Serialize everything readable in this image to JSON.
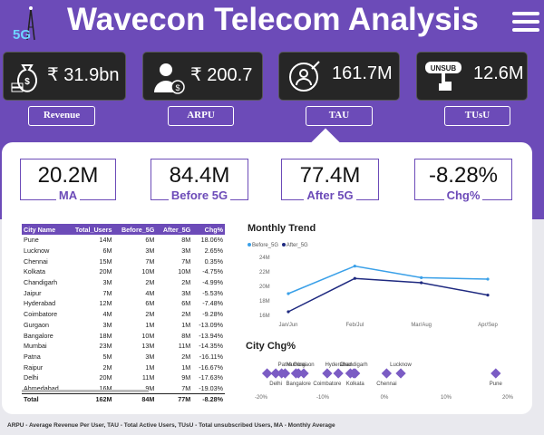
{
  "header": {
    "logo_text": "5G",
    "title": "Wavecon Telecom Analysis",
    "menu_icon": "hamburger-menu-icon"
  },
  "kpis": [
    {
      "icon": "money-icon",
      "value": "₹ 31.9bn",
      "tab": "Revenue"
    },
    {
      "icon": "user-rupee-icon",
      "value": "₹ 200.7",
      "tab": "ARPU"
    },
    {
      "icon": "target-user-icon",
      "value": "161.7M",
      "tab": "TAU"
    },
    {
      "icon": "unsubscribe-hand-icon",
      "value": "12.6M",
      "tab": "TUsU",
      "icon_text": "UNSUB"
    }
  ],
  "selected_tab": "TAU",
  "cards": [
    {
      "value": "20.2M",
      "label": "MA"
    },
    {
      "value": "84.4M",
      "label": "Before 5G"
    },
    {
      "value": "77.4M",
      "label": "After 5G"
    },
    {
      "value": "-8.28%",
      "label": "Chg%"
    }
  ],
  "table": {
    "columns": [
      "City Name",
      "Total_Users",
      "Before_5G",
      "After_5G",
      "Chg%"
    ],
    "rows": [
      [
        "Pune",
        "14M",
        "6M",
        "8M",
        "18.06%"
      ],
      [
        "Lucknow",
        "6M",
        "3M",
        "3M",
        "2.65%"
      ],
      [
        "Chennai",
        "15M",
        "7M",
        "7M",
        "0.35%"
      ],
      [
        "Kolkata",
        "20M",
        "10M",
        "10M",
        "-4.75%"
      ],
      [
        "Chandigarh",
        "3M",
        "2M",
        "2M",
        "-4.99%"
      ],
      [
        "Jaipur",
        "7M",
        "4M",
        "3M",
        "-5.53%"
      ],
      [
        "Hyderabad",
        "12M",
        "6M",
        "6M",
        "-7.48%"
      ],
      [
        "Coimbatore",
        "4M",
        "2M",
        "2M",
        "-9.28%"
      ],
      [
        "Gurgaon",
        "3M",
        "1M",
        "1M",
        "-13.09%"
      ],
      [
        "Bangalore",
        "18M",
        "10M",
        "8M",
        "-13.94%"
      ],
      [
        "Mumbai",
        "23M",
        "13M",
        "11M",
        "-14.35%"
      ],
      [
        "Patna",
        "5M",
        "3M",
        "2M",
        "-16.11%"
      ],
      [
        "Raipur",
        "2M",
        "1M",
        "1M",
        "-16.67%"
      ],
      [
        "Delhi",
        "20M",
        "11M",
        "9M",
        "-17.63%"
      ],
      [
        "Ahmedabad",
        "16M",
        "9M",
        "7M",
        "-19.03%"
      ]
    ],
    "total": [
      "Total",
      "162M",
      "84M",
      "77M",
      "-8.28%"
    ]
  },
  "monthly_trend": {
    "title": "Monthly Trend",
    "legend": [
      "Before_5G",
      "After_5G"
    ]
  },
  "city_chg": {
    "title": "City Chg%"
  },
  "footer": "ARPU - Average Revenue Per User, TAU - Total Active Users, TUsU - Total unsubscribed Users, MA - Monthly Average",
  "colors": {
    "accent": "#6c4bb8",
    "before": "#3aa0e8",
    "after": "#1f2a80",
    "dot": "#7b5cc4"
  },
  "chart_data": [
    {
      "type": "line",
      "title": "Monthly Trend",
      "categories": [
        "Jan/Jun",
        "Feb/Jul",
        "Mar/Aug",
        "Apr/Sep"
      ],
      "series": [
        {
          "name": "Before_5G",
          "values": [
            19.0,
            22.8,
            21.2,
            21.0
          ]
        },
        {
          "name": "After_5G",
          "values": [
            16.5,
            21.1,
            20.5,
            18.8
          ]
        }
      ],
      "yticks": [
        "24M",
        "22M",
        "20M",
        "18M",
        "16M"
      ],
      "ylim": [
        16,
        24
      ]
    },
    {
      "type": "scatter",
      "title": "City Chg%",
      "xticks": [
        "-20%",
        "-10%",
        "0%",
        "10%",
        "20%"
      ],
      "xlim": [
        -20,
        20
      ],
      "points": [
        {
          "label": "Pune",
          "x": 18.06
        },
        {
          "label": "Lucknow",
          "x": 2.65
        },
        {
          "label": "Chennai",
          "x": 0.35
        },
        {
          "label": "Kolkata",
          "x": -4.75
        },
        {
          "label": "Chandigarh",
          "x": -4.99
        },
        {
          "label": "Jaipur",
          "x": -5.53
        },
        {
          "label": "Hyderabad",
          "x": -7.48
        },
        {
          "label": "Coimbatore",
          "x": -9.28
        },
        {
          "label": "Gurgaon",
          "x": -13.09
        },
        {
          "label": "Bangalore",
          "x": -13.94
        },
        {
          "label": "Mumbai",
          "x": -14.35
        },
        {
          "label": "Patna",
          "x": -16.11
        },
        {
          "label": "Raipur",
          "x": -16.67
        },
        {
          "label": "Delhi",
          "x": -17.63
        },
        {
          "label": "Ahmedabad",
          "x": -19.03
        }
      ],
      "shown_labels_top": [
        "Patna",
        "Gurgaon",
        "Mumbai",
        "Hyderabad",
        "Chandigarh",
        "Lucknow"
      ],
      "shown_labels_bottom": [
        "Delhi",
        "Bangalore",
        "Coimbatore",
        "Kolkata",
        "Chennai",
        "Pune"
      ]
    }
  ]
}
